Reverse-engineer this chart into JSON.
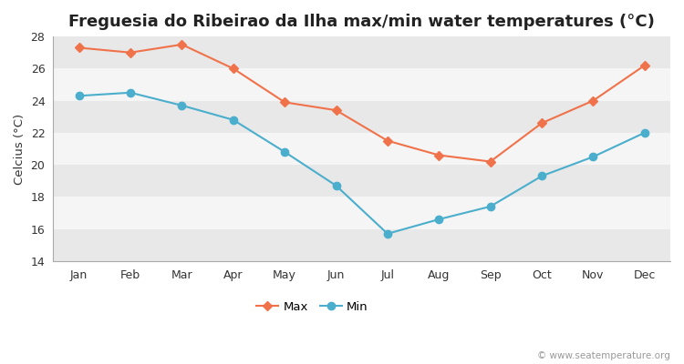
{
  "title": "Freguesia do Ribeirao da Ilha max/min water temperatures (°C)",
  "ylabel": "Celcius (°C)",
  "months": [
    "Jan",
    "Feb",
    "Mar",
    "Apr",
    "May",
    "Jun",
    "Jul",
    "Aug",
    "Sep",
    "Oct",
    "Nov",
    "Dec"
  ],
  "max_temps": [
    27.3,
    27.0,
    27.5,
    26.0,
    23.9,
    23.4,
    21.5,
    20.6,
    20.2,
    22.6,
    24.0,
    26.2
  ],
  "min_temps": [
    24.3,
    24.5,
    23.7,
    22.8,
    20.8,
    18.7,
    15.7,
    16.6,
    17.4,
    19.3,
    20.5,
    22.0
  ],
  "max_color": "#f0724a",
  "min_color": "#4aaecc",
  "fig_bg_color": "#ffffff",
  "plot_bg_color": "#f0f0f0",
  "stripe_color1": "#e8e8e8",
  "stripe_color2": "#f5f5f5",
  "ylim": [
    14,
    28
  ],
  "yticks": [
    14,
    16,
    18,
    20,
    22,
    24,
    26,
    28
  ],
  "legend_labels": [
    "Max",
    "Min"
  ],
  "watermark": "© www.seatemperature.org",
  "title_fontsize": 13,
  "label_fontsize": 9.5,
  "tick_fontsize": 9,
  "legend_fontsize": 9.5
}
